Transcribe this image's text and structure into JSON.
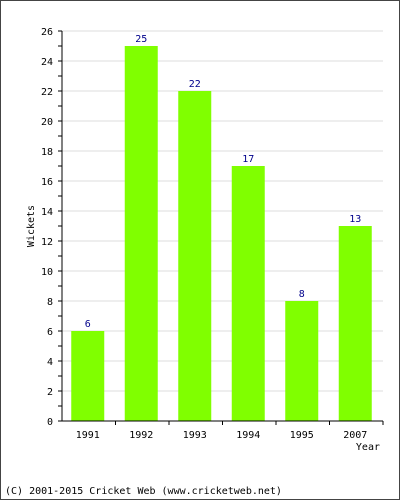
{
  "chart_data": {
    "type": "bar",
    "categories": [
      "1991",
      "1992",
      "1993",
      "1994",
      "1995",
      "2007"
    ],
    "values": [
      6,
      25,
      22,
      17,
      8,
      13
    ],
    "xlabel": "Year",
    "ylabel": "Wickets",
    "ylim": [
      0,
      26
    ],
    "yticks": [
      0,
      2,
      4,
      6,
      8,
      10,
      12,
      14,
      16,
      18,
      20,
      22,
      24,
      26
    ],
    "grid": true,
    "colors": {
      "bar": "#80ff00",
      "value_label": "#00008b",
      "grid": "#dddddd",
      "axis": "#000000"
    }
  },
  "footer": {
    "text": "(C) 2001-2015 Cricket Web (www.cricketweb.net)"
  }
}
